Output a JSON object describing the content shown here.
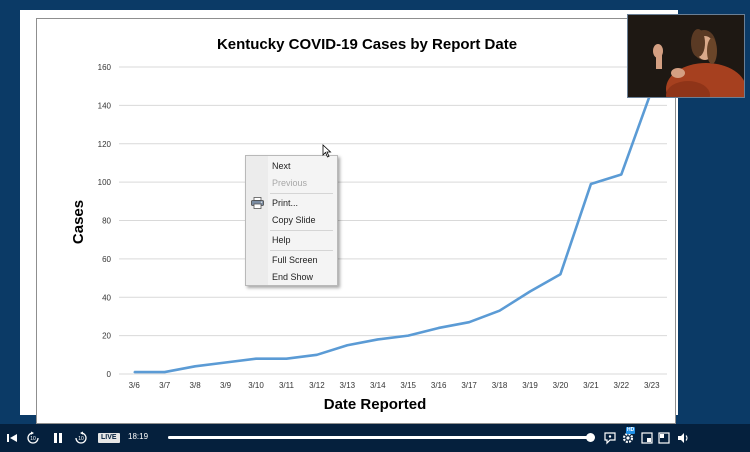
{
  "chart_data": {
    "type": "line",
    "title": "Kentucky COVID-19 Cases by Report Date",
    "xlabel": "Date Reported",
    "ylabel": "Cases",
    "categories": [
      "3/6",
      "3/7",
      "3/8",
      "3/9",
      "3/10",
      "3/11",
      "3/12",
      "3/13",
      "3/14",
      "3/15",
      "3/16",
      "3/17",
      "3/18",
      "3/19",
      "3/20",
      "3/21",
      "3/22",
      "3/23"
    ],
    "series": [
      {
        "values": [
          1,
          1,
          4,
          6,
          8,
          8,
          10,
          15,
          18,
          20,
          24,
          27,
          33,
          43,
          52,
          99,
          104,
          148
        ]
      }
    ],
    "ylim": [
      0,
      160
    ],
    "yticks": [
      0,
      20,
      40,
      60,
      80,
      100,
      120,
      140,
      160
    ],
    "ytick_labels": [
      "0",
      "20",
      "40",
      "60",
      "80",
      "100",
      "120",
      "140",
      "160"
    ],
    "grid": true,
    "legend": "none",
    "colors": {
      "line": "#5b9bd5",
      "grid": "#d9d9d9"
    }
  },
  "context_menu": {
    "items": [
      {
        "label": "Next",
        "enabled": true
      },
      {
        "label": "Previous",
        "enabled": false
      },
      {
        "label": "Print...",
        "enabled": true,
        "icon": "printer-icon"
      },
      {
        "label": "Copy Slide",
        "enabled": true
      },
      {
        "label": "Help",
        "enabled": true
      },
      {
        "label": "Full Screen",
        "enabled": true
      },
      {
        "label": "End Show",
        "enabled": true
      }
    ]
  },
  "player": {
    "time": "18:19",
    "live_label": "LIVE",
    "hd_label": "HD",
    "progress": 0.997,
    "icons": [
      "skip-back-icon",
      "rewind-10-icon",
      "pause-icon",
      "forward-10-icon",
      "captions-icon",
      "settings-icon",
      "miniplayer-icon",
      "pip-icon",
      "fullscreen-icon",
      "volume-icon"
    ]
  }
}
